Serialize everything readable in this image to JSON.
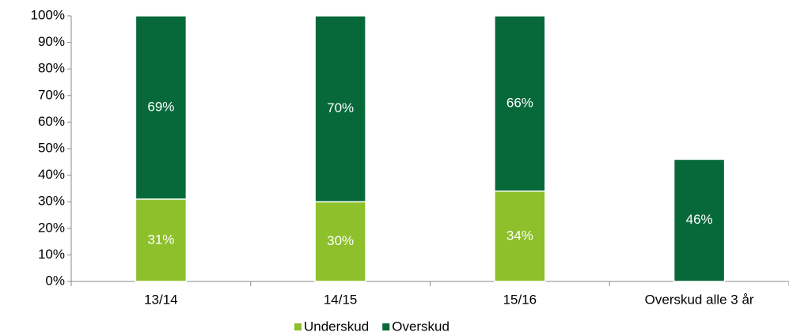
{
  "chart_data": {
    "type": "stacked_bar",
    "categories": [
      "13/14",
      "14/15",
      "15/16",
      "Overskud alle 3 år"
    ],
    "series": [
      {
        "name": "Underskud",
        "color": "#8dc02b",
        "values": [
          31,
          30,
          34,
          null
        ],
        "value_labels": [
          "31%",
          "30%",
          "34%",
          null
        ]
      },
      {
        "name": "Overskud",
        "color": "#07693a",
        "values": [
          69,
          70,
          66,
          46
        ],
        "value_labels": [
          "69%",
          "70%",
          "66%",
          "46%"
        ]
      }
    ],
    "ylim": [
      0,
      100
    ],
    "yticks": [
      {
        "value": 0,
        "label": "0%"
      },
      {
        "value": 10,
        "label": "10%"
      },
      {
        "value": 20,
        "label": "20%"
      },
      {
        "value": 30,
        "label": "30%"
      },
      {
        "value": 40,
        "label": "40%"
      },
      {
        "value": 50,
        "label": "50%"
      },
      {
        "value": 60,
        "label": "60%"
      },
      {
        "value": 70,
        "label": "70%"
      },
      {
        "value": 80,
        "label": "80%"
      },
      {
        "value": 90,
        "label": "90%"
      },
      {
        "value": 100,
        "label": "100%"
      }
    ],
    "legend": "bottom"
  }
}
